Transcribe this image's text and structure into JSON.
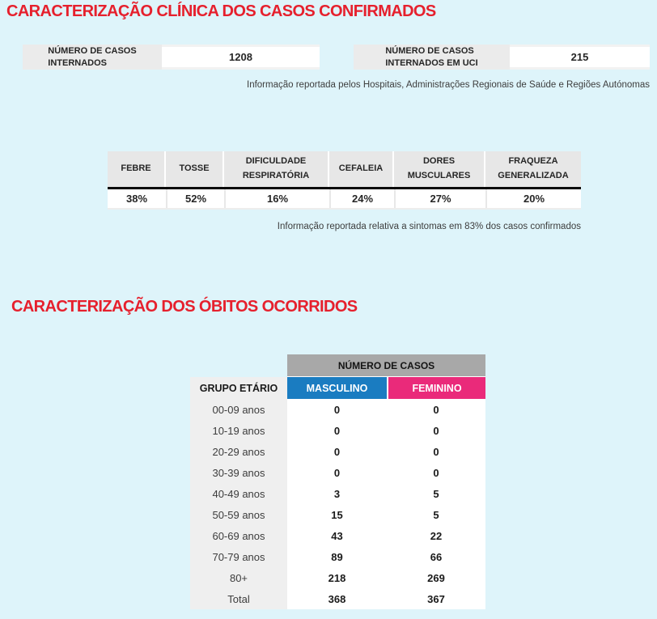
{
  "colors": {
    "background": "#def4fa",
    "title_red": "#e6202d",
    "male_blue": "#1a7cc1",
    "female_pink": "#ea2a7a",
    "cases_header_gray": "#a8a8a8",
    "age_column_gray": "#efefef",
    "stat_label_gray": "#ebebeb"
  },
  "clinical": {
    "title": "CARACTERIZAÇÃO CLÍNICA DOS CASOS CONFIRMADOS",
    "stat_hospitalized": {
      "label": "NÚMERO DE CASOS\nINTERNADOS",
      "value": "1208"
    },
    "stat_icu": {
      "label": "NÚMERO DE CASOS\nINTERNADOS EM UCI",
      "value": "215"
    },
    "source_note": "Informação reportada pelos Hospitais, Administrações Regionais de Saúde e Regiões Autónomas",
    "symptoms": {
      "columns": [
        "FEBRE",
        "TOSSE",
        "DIFICULDADE\nRESPIRATÓRIA",
        "CEFALEIA",
        "DORES\nMUSCULARES",
        "FRAQUEZA\nGENERALIZADA"
      ],
      "values": [
        "38%",
        "52%",
        "16%",
        "24%",
        "27%",
        "20%"
      ]
    },
    "symptoms_note": "Informação reportada relativa a sintomas em 83% dos casos confirmados"
  },
  "deaths": {
    "title": "CARACTERIZAÇÃO DOS ÓBITOS OCORRIDOS",
    "cases_header": "NÚMERO DE CASOS",
    "age_header": "GRUPO ETÁRIO",
    "male_header": "MASCULINO",
    "female_header": "FEMININO",
    "rows": [
      {
        "age": "00-09 anos",
        "male": "0",
        "female": "0"
      },
      {
        "age": "10-19 anos",
        "male": "0",
        "female": "0"
      },
      {
        "age": "20-29 anos",
        "male": "0",
        "female": "0"
      },
      {
        "age": "30-39 anos",
        "male": "0",
        "female": "0"
      },
      {
        "age": "40-49 anos",
        "male": "3",
        "female": "5"
      },
      {
        "age": "50-59 anos",
        "male": "15",
        "female": "5"
      },
      {
        "age": "60-69 anos",
        "male": "43",
        "female": "22"
      },
      {
        "age": "70-79 anos",
        "male": "89",
        "female": "66"
      },
      {
        "age": "80+",
        "male": "218",
        "female": "269"
      },
      {
        "age": "Total",
        "male": "368",
        "female": "367"
      }
    ]
  }
}
